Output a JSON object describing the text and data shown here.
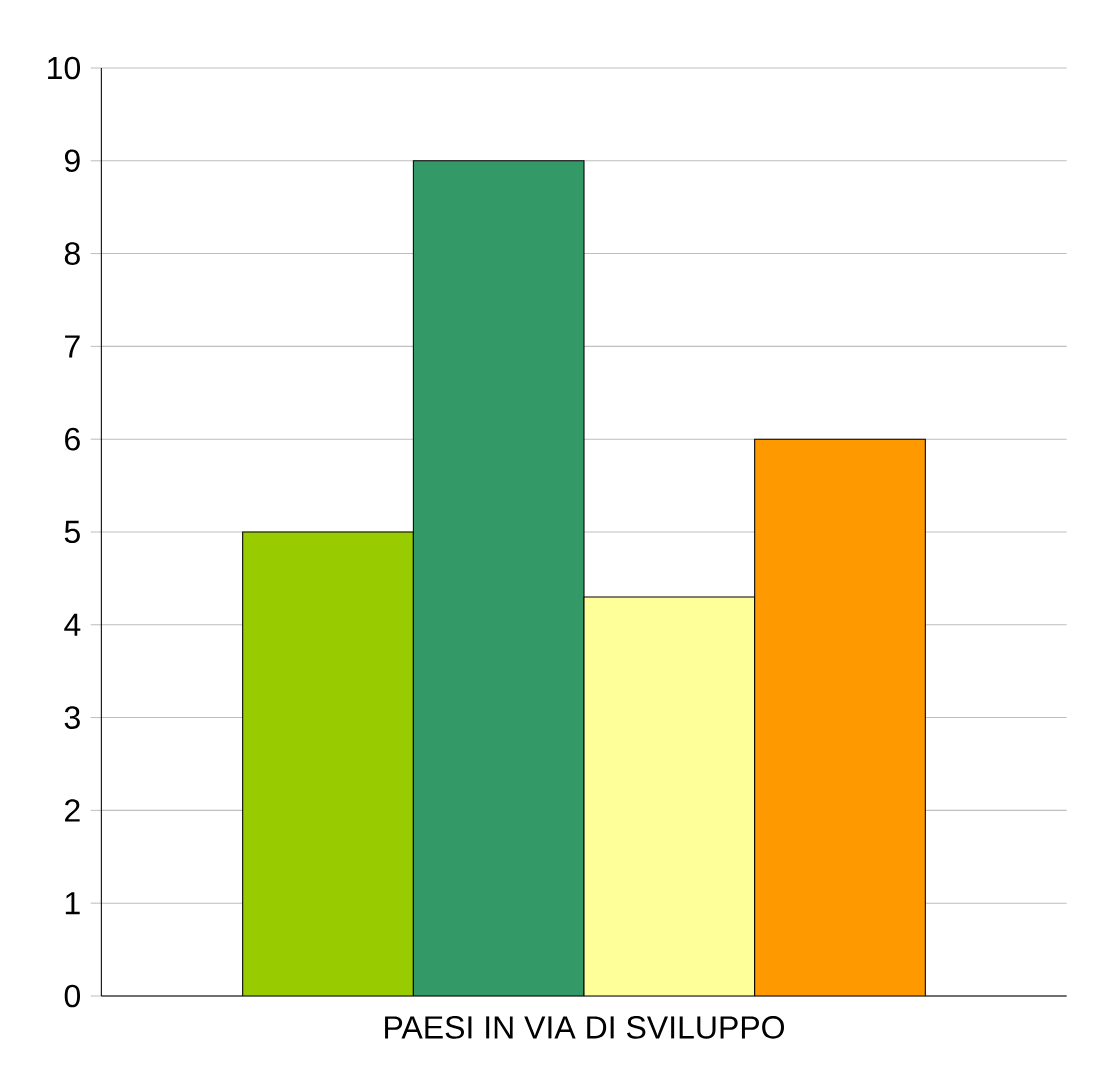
{
  "chart_data": {
    "type": "bar",
    "categories": [
      "PAESI IN VIA DI SVILUPPO"
    ],
    "series": [
      {
        "color": "#99cc00",
        "values": [
          5
        ]
      },
      {
        "color": "#339966",
        "values": [
          9
        ]
      },
      {
        "color": "#ffff99",
        "values": [
          4.3
        ]
      },
      {
        "color": "#ff9900",
        "values": [
          6
        ]
      }
    ],
    "ylim": [
      0,
      10
    ],
    "yticks": [
      0,
      1,
      2,
      3,
      4,
      5,
      6,
      7,
      8,
      9,
      10
    ],
    "grid": "y"
  }
}
